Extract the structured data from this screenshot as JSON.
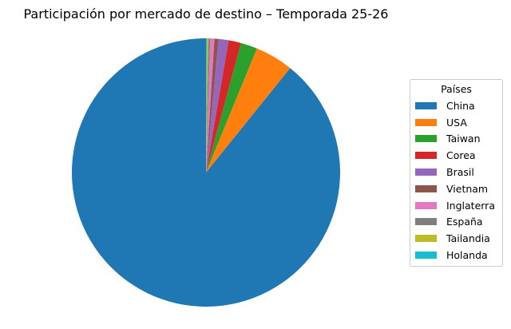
{
  "chart_data": {
    "type": "pie",
    "title": "Participación por mercado de destino – Temporada 25-26",
    "legend_title": "Países",
    "legend_position": "right",
    "start_angle_deg": 90,
    "direction": "counterclockwise",
    "slices": [
      {
        "label": "China",
        "value": 89.2,
        "color": "#1f77b4"
      },
      {
        "label": "USA",
        "value": 4.6,
        "color": "#ff7f0e"
      },
      {
        "label": "Taiwan",
        "value": 2.0,
        "color": "#2ca02c"
      },
      {
        "label": "Corea",
        "value": 1.5,
        "color": "#d62728"
      },
      {
        "label": "Brasil",
        "value": 1.2,
        "color": "#9467bd"
      },
      {
        "label": "Vietnam",
        "value": 0.5,
        "color": "#8c564b"
      },
      {
        "label": "Inglaterra",
        "value": 0.5,
        "color": "#e377c2"
      },
      {
        "label": "España",
        "value": 0.2,
        "color": "#7f7f7f"
      },
      {
        "label": "Tailandia",
        "value": 0.2,
        "color": "#bcbd22"
      },
      {
        "label": "Holanda",
        "value": 0.1,
        "color": "#17becf"
      }
    ]
  }
}
